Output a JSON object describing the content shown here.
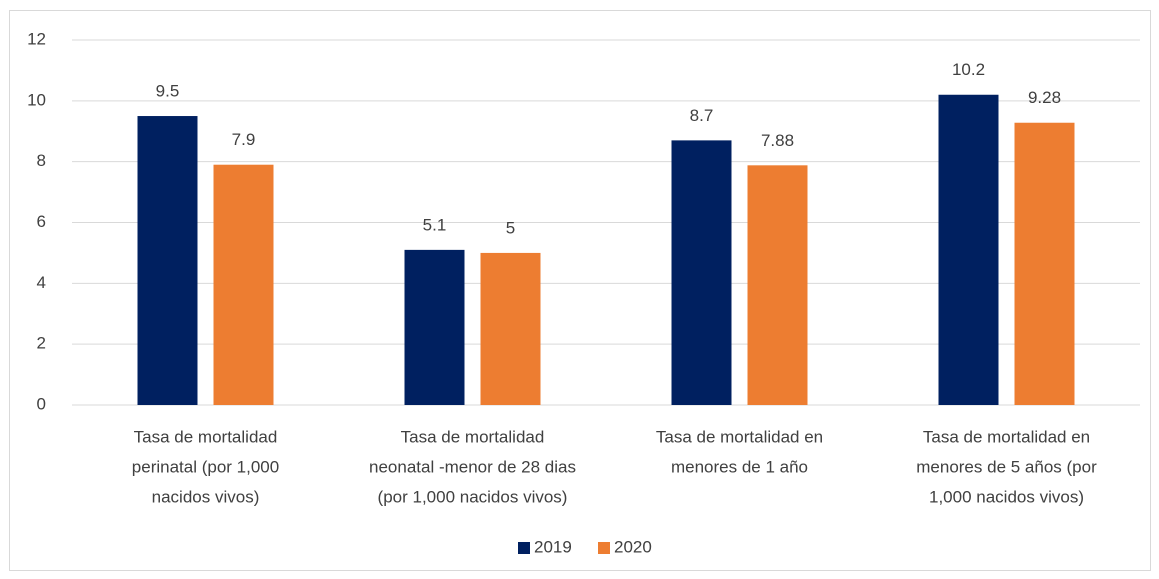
{
  "chart_data": {
    "type": "bar",
    "categories": [
      [
        "Tasa de mortalidad",
        "perinatal (por 1,000",
        "nacidos vivos)"
      ],
      [
        "Tasa de mortalidad",
        "neonatal -menor de 28 dias",
        "(por 1,000 nacidos vivos)"
      ],
      [
        "Tasa de mortalidad en",
        "menores de 1 año"
      ],
      [
        "Tasa de mortalidad en",
        "menores de 5 años (por",
        "1,000 nacidos vivos)"
      ]
    ],
    "series": [
      {
        "name": "2019",
        "color": "#002060",
        "values": [
          9.5,
          5.1,
          8.7,
          10.2
        ]
      },
      {
        "name": "2020",
        "color": "#ED7D31",
        "values": [
          7.9,
          5,
          7.88,
          9.28
        ]
      }
    ],
    "ylim": [
      0,
      12
    ],
    "yticks": [
      0,
      2,
      4,
      6,
      8,
      10,
      12
    ],
    "grid": true,
    "legend": "bottom"
  }
}
